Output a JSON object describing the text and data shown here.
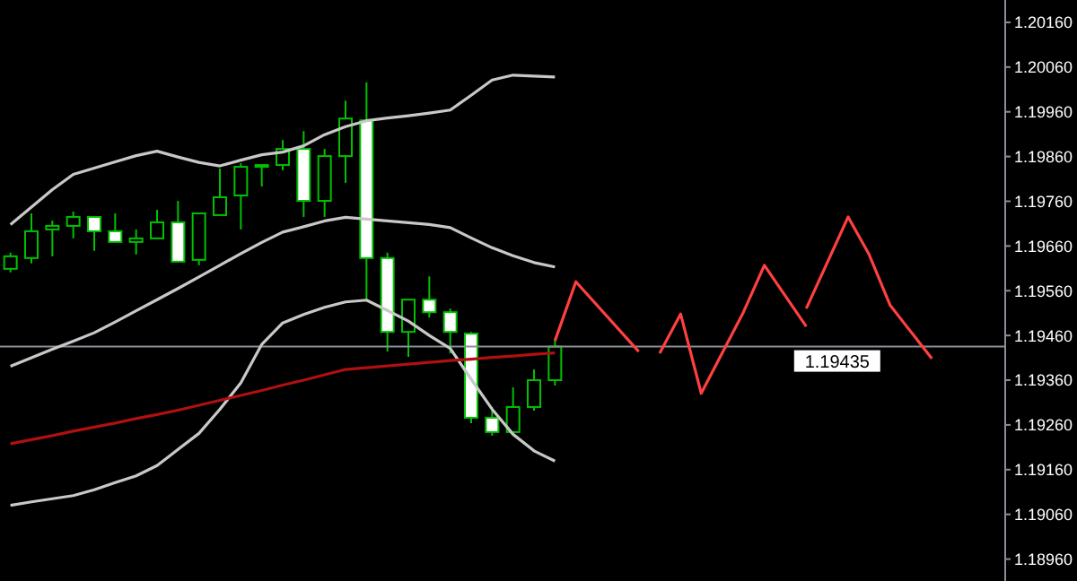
{
  "chart_data": {
    "type": "candlestick",
    "categories": [
      null,
      null,
      null,
      null,
      null,
      null,
      null,
      null,
      null,
      null,
      null,
      null,
      null,
      null,
      null,
      null,
      null,
      null,
      null,
      null,
      null,
      null,
      null,
      null,
      null,
      null,
      null,
      null,
      null,
      null,
      null,
      null,
      null,
      null,
      null,
      null,
      null,
      null,
      null,
      null,
      null,
      null,
      null,
      null,
      null,
      null,
      null,
      null
    ],
    "ohlc": [
      [
        1.19609,
        1.19645,
        1.19601,
        1.19637
      ],
      [
        1.19633,
        1.19733,
        1.19621,
        1.19693
      ],
      [
        1.19697,
        1.19717,
        1.19637,
        1.19705
      ],
      [
        1.19705,
        1.19737,
        1.19677,
        1.19725
      ],
      [
        1.19725,
        1.19725,
        1.19649,
        1.19693
      ],
      [
        1.19693,
        1.19733,
        1.19669,
        1.19669
      ],
      [
        1.19669,
        1.19697,
        1.19641,
        1.19677
      ],
      [
        1.19677,
        1.19741,
        1.19677,
        1.19713
      ],
      [
        1.19713,
        1.19761,
        1.19625,
        1.19625
      ],
      [
        1.19629,
        1.19733,
        1.19617,
        1.19733
      ],
      [
        1.19729,
        1.19833,
        1.19729,
        1.19769
      ],
      [
        1.19773,
        1.19845,
        1.19697,
        1.19837
      ],
      [
        1.19837,
        1.19841,
        1.19793,
        1.19841
      ],
      [
        1.19841,
        1.19897,
        1.19829,
        1.19877
      ],
      [
        1.19877,
        1.19917,
        1.19725,
        1.19761
      ],
      [
        1.19761,
        1.19877,
        1.19725,
        1.19861
      ],
      [
        1.19861,
        1.19985,
        1.19801,
        1.19945
      ],
      [
        1.19941,
        1.20026,
        1.1954,
        1.19633
      ],
      [
        1.19633,
        1.19645,
        1.19424,
        1.19468
      ],
      [
        1.19468,
        1.1954,
        1.19412,
        1.1954
      ],
      [
        1.1954,
        1.19592,
        1.195,
        1.19512
      ],
      [
        1.19512,
        1.1952,
        1.1942,
        1.19468
      ],
      [
        1.19464,
        1.19468,
        1.19264,
        1.19276
      ],
      [
        1.19276,
        1.193,
        1.19236,
        1.19244
      ],
      [
        1.19244,
        1.19344,
        1.1924,
        1.193
      ],
      [
        1.193,
        1.19384,
        1.19292,
        1.1936
      ],
      [
        1.1936,
        1.19452,
        1.19348,
        1.19435
      ],
      null,
      null,
      null,
      null,
      null,
      null,
      null,
      null,
      null,
      null,
      null,
      null,
      null,
      null,
      null,
      null,
      null,
      null,
      null,
      null,
      null
    ],
    "color": "#00c000",
    "colors": [
      "#000000",
      "#000000",
      "#000000",
      "#000000",
      "#ffffff",
      "#ffffff",
      "#000000",
      "#000000",
      "#ffffff",
      "#000000",
      "#000000",
      "#000000",
      "#000000",
      "#000000",
      "#ffffff",
      "#000000",
      "#000000",
      "#ffffff",
      "#ffffff",
      "#000000",
      "#ffffff",
      "#ffffff",
      "#ffffff",
      "#ffffff",
      "#000000",
      "#000000",
      "#000000",
      null,
      null,
      null,
      null,
      null,
      null,
      null,
      null,
      null,
      null,
      null,
      null,
      null,
      null,
      null,
      null,
      null,
      null,
      null,
      null,
      null
    ],
    "series": [
      {
        "type": "line",
        "color": "#c8c8c8",
        "values": [
          1.19708,
          1.19747,
          1.19786,
          1.1982,
          1.19834,
          1.19848,
          1.19862,
          1.19872,
          1.19859,
          1.19847,
          1.19839,
          1.19852,
          1.19864,
          1.1987,
          1.19884,
          1.19909,
          1.19927,
          1.1994,
          1.19946,
          1.19951,
          1.19957,
          1.19964,
          1.19997,
          1.20031,
          1.20042,
          1.2004,
          1.20038,
          null,
          null,
          null,
          null,
          null,
          null,
          null,
          null,
          null,
          null,
          null,
          null,
          null,
          null,
          null,
          null,
          null,
          null,
          null,
          null,
          null
        ]
      },
      {
        "type": "line",
        "color": "#c8c8c8",
        "values": [
          1.19391,
          1.1941,
          1.19429,
          1.19447,
          1.19466,
          1.1949,
          1.19515,
          1.1954,
          1.19565,
          1.19591,
          1.19617,
          1.19643,
          1.19668,
          1.19691,
          1.19703,
          1.19716,
          1.19724,
          1.1972,
          1.19716,
          1.19712,
          1.19708,
          1.19701,
          1.19678,
          1.19656,
          1.19638,
          1.19623,
          1.19613,
          null,
          null,
          null,
          null,
          null,
          null,
          null,
          null,
          null,
          null,
          null,
          null,
          null,
          null,
          null,
          null,
          null,
          null,
          null,
          null,
          null
        ]
      },
      {
        "type": "line",
        "color": "#c8c8c8",
        "values": [
          1.1908,
          1.19088,
          1.19095,
          1.19102,
          1.19115,
          1.19131,
          1.19146,
          1.19169,
          1.19205,
          1.19241,
          1.19295,
          1.19354,
          1.1944,
          1.19488,
          1.19507,
          1.19523,
          1.19535,
          1.19539,
          1.19516,
          1.19492,
          1.1946,
          1.19431,
          1.19362,
          1.19295,
          1.19239,
          1.19202,
          1.19179,
          null,
          null,
          null,
          null,
          null,
          null,
          null,
          null,
          null,
          null,
          null,
          null,
          null,
          null,
          null,
          null,
          null,
          null,
          null,
          null,
          null
        ]
      },
      {
        "type": "line",
        "color": "#b01010",
        "values": [
          1.19218,
          1.19227,
          1.19236,
          1.19246,
          1.19255,
          1.19264,
          1.19274,
          1.19283,
          1.19293,
          1.19304,
          1.19315,
          1.19326,
          1.19337,
          1.19349,
          1.1936,
          1.19372,
          1.19384,
          1.19388,
          1.19392,
          1.19396,
          1.194,
          1.19404,
          1.19407,
          1.19411,
          1.19414,
          1.19418,
          1.19421,
          null,
          null,
          null,
          null,
          null,
          null,
          null,
          null,
          null,
          null,
          null,
          null,
          null,
          null,
          null,
          null,
          null,
          null,
          null,
          null,
          null
        ]
      },
      {
        "type": "line",
        "color": "#ff4040",
        "values": [
          null,
          null,
          null,
          null,
          null,
          null,
          null,
          null,
          null,
          null,
          null,
          null,
          null,
          null,
          null,
          null,
          null,
          null,
          null,
          null,
          null,
          null,
          null,
          null,
          null,
          null,
          1.19448,
          1.1958,
          null,
          null,
          1.19424,
          null,
          null,
          null,
          null,
          null,
          null,
          null,
          null,
          null,
          null,
          null,
          null,
          null,
          null,
          null,
          null,
          null
        ]
      },
      {
        "type": "line",
        "color": "#ff4040",
        "values": [
          null,
          null,
          null,
          null,
          null,
          null,
          null,
          null,
          null,
          null,
          null,
          null,
          null,
          null,
          null,
          null,
          null,
          null,
          null,
          null,
          null,
          null,
          null,
          null,
          null,
          null,
          null,
          null,
          null,
          null,
          null,
          1.1942,
          1.19508,
          1.19328,
          null,
          null,
          null,
          null,
          null,
          null,
          null,
          null,
          null,
          null,
          null,
          null,
          null,
          null
        ]
      },
      {
        "type": "line",
        "color": "#ff4040",
        "values": [
          null,
          null,
          null,
          null,
          null,
          null,
          null,
          null,
          null,
          null,
          null,
          null,
          null,
          null,
          null,
          null,
          null,
          null,
          null,
          null,
          null,
          null,
          null,
          null,
          null,
          null,
          null,
          null,
          null,
          null,
          null,
          null,
          null,
          1.19332,
          null,
          1.19512,
          1.19617,
          null,
          1.1948,
          null,
          null,
          null,
          null,
          null,
          null,
          null,
          null,
          null
        ]
      },
      {
        "type": "line",
        "color": "#ff4040",
        "values": [
          null,
          null,
          null,
          null,
          null,
          null,
          null,
          null,
          null,
          null,
          null,
          null,
          null,
          null,
          null,
          null,
          null,
          null,
          null,
          null,
          null,
          null,
          null,
          null,
          null,
          null,
          null,
          null,
          null,
          null,
          null,
          null,
          null,
          null,
          null,
          null,
          null,
          null,
          1.1952,
          null,
          1.19725,
          1.19641,
          1.19528,
          null,
          1.19408,
          null,
          null,
          null
        ]
      }
    ],
    "ylim": [
      1.18911,
      1.2021
    ],
    "yticks": [
      {
        "value": 1.1896,
        "label": "1.18960"
      },
      {
        "value": 1.1906,
        "label": "1.19060"
      },
      {
        "value": 1.1916,
        "label": "1.19160"
      },
      {
        "value": 1.1926,
        "label": "1.19260"
      },
      {
        "value": 1.1936,
        "label": "1.19360"
      },
      {
        "value": 1.1946,
        "label": "1.19460"
      },
      {
        "value": 1.1956,
        "label": "1.19560"
      },
      {
        "value": 1.1966,
        "label": "1.19660"
      },
      {
        "value": 1.1976,
        "label": "1.19760"
      },
      {
        "value": 1.1986,
        "label": "1.19860"
      },
      {
        "value": 1.1996,
        "label": "1.19960"
      },
      {
        "value": 1.2006,
        "label": "1.20060"
      },
      {
        "value": 1.2016,
        "label": "1.20160"
      }
    ],
    "tick_labels": "y",
    "marker": "none",
    "ref_lines": [
      {
        "axis": "y",
        "value": 1.19435,
        "label": "1.19435",
        "color": "#8a8f98",
        "line_style": "solid"
      }
    ]
  }
}
